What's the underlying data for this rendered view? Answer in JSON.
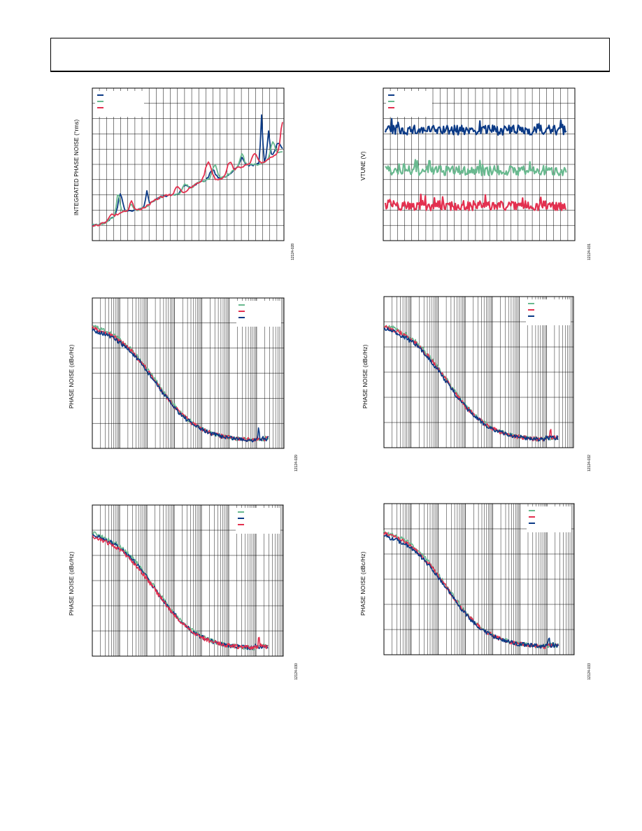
{
  "colors": {
    "blue": "#0b3a86",
    "red": "#e3304f",
    "green": "#69b98f",
    "grid": "#000000"
  },
  "chart_data": [
    {
      "id": "c1",
      "type": "line",
      "ylabel": "INTEGRATED PHASE NOISE (°rms)",
      "figure_id": "12124-028",
      "grid": true,
      "xscale": "linear",
      "legend": "top-left",
      "series": [
        {
          "color": "blue"
        },
        {
          "color": "green"
        },
        {
          "color": "red"
        }
      ]
    },
    {
      "id": "c2",
      "type": "line",
      "ylabel": "VTUNE (V)",
      "figure_id": "12124-031",
      "grid": true,
      "xscale": "linear",
      "legend": "top-left",
      "series": [
        {
          "color": "blue"
        },
        {
          "color": "green"
        },
        {
          "color": "red"
        }
      ]
    },
    {
      "id": "c3",
      "type": "line",
      "ylabel": "PHASE NOISE (dBc/Hz)",
      "figure_id": "12124-029",
      "grid": true,
      "xscale": "log",
      "legend": "top-right",
      "series": [
        {
          "color": "blue"
        },
        {
          "color": "red"
        },
        {
          "color": "green"
        }
      ]
    },
    {
      "id": "c4",
      "type": "line",
      "ylabel": "PHASE NOISE (dBc/Hz)",
      "figure_id": "12124-032",
      "grid": true,
      "xscale": "log",
      "legend": "top-right",
      "series": [
        {
          "color": "blue"
        },
        {
          "color": "red"
        },
        {
          "color": "green"
        }
      ]
    },
    {
      "id": "c5",
      "type": "line",
      "ylabel": "PHASE NOISE (dBc/Hz)",
      "figure_id": "12124-030",
      "grid": true,
      "xscale": "log",
      "legend": "top-right",
      "series": [
        {
          "color": "blue"
        },
        {
          "color": "red"
        },
        {
          "color": "green"
        }
      ]
    },
    {
      "id": "c6",
      "type": "line",
      "ylabel": "PHASE NOISE (dBc/Hz)",
      "figure_id": "12124-033",
      "grid": true,
      "xscale": "log",
      "legend": "top-right",
      "series": [
        {
          "color": "blue"
        },
        {
          "color": "red"
        },
        {
          "color": "green"
        }
      ]
    }
  ]
}
